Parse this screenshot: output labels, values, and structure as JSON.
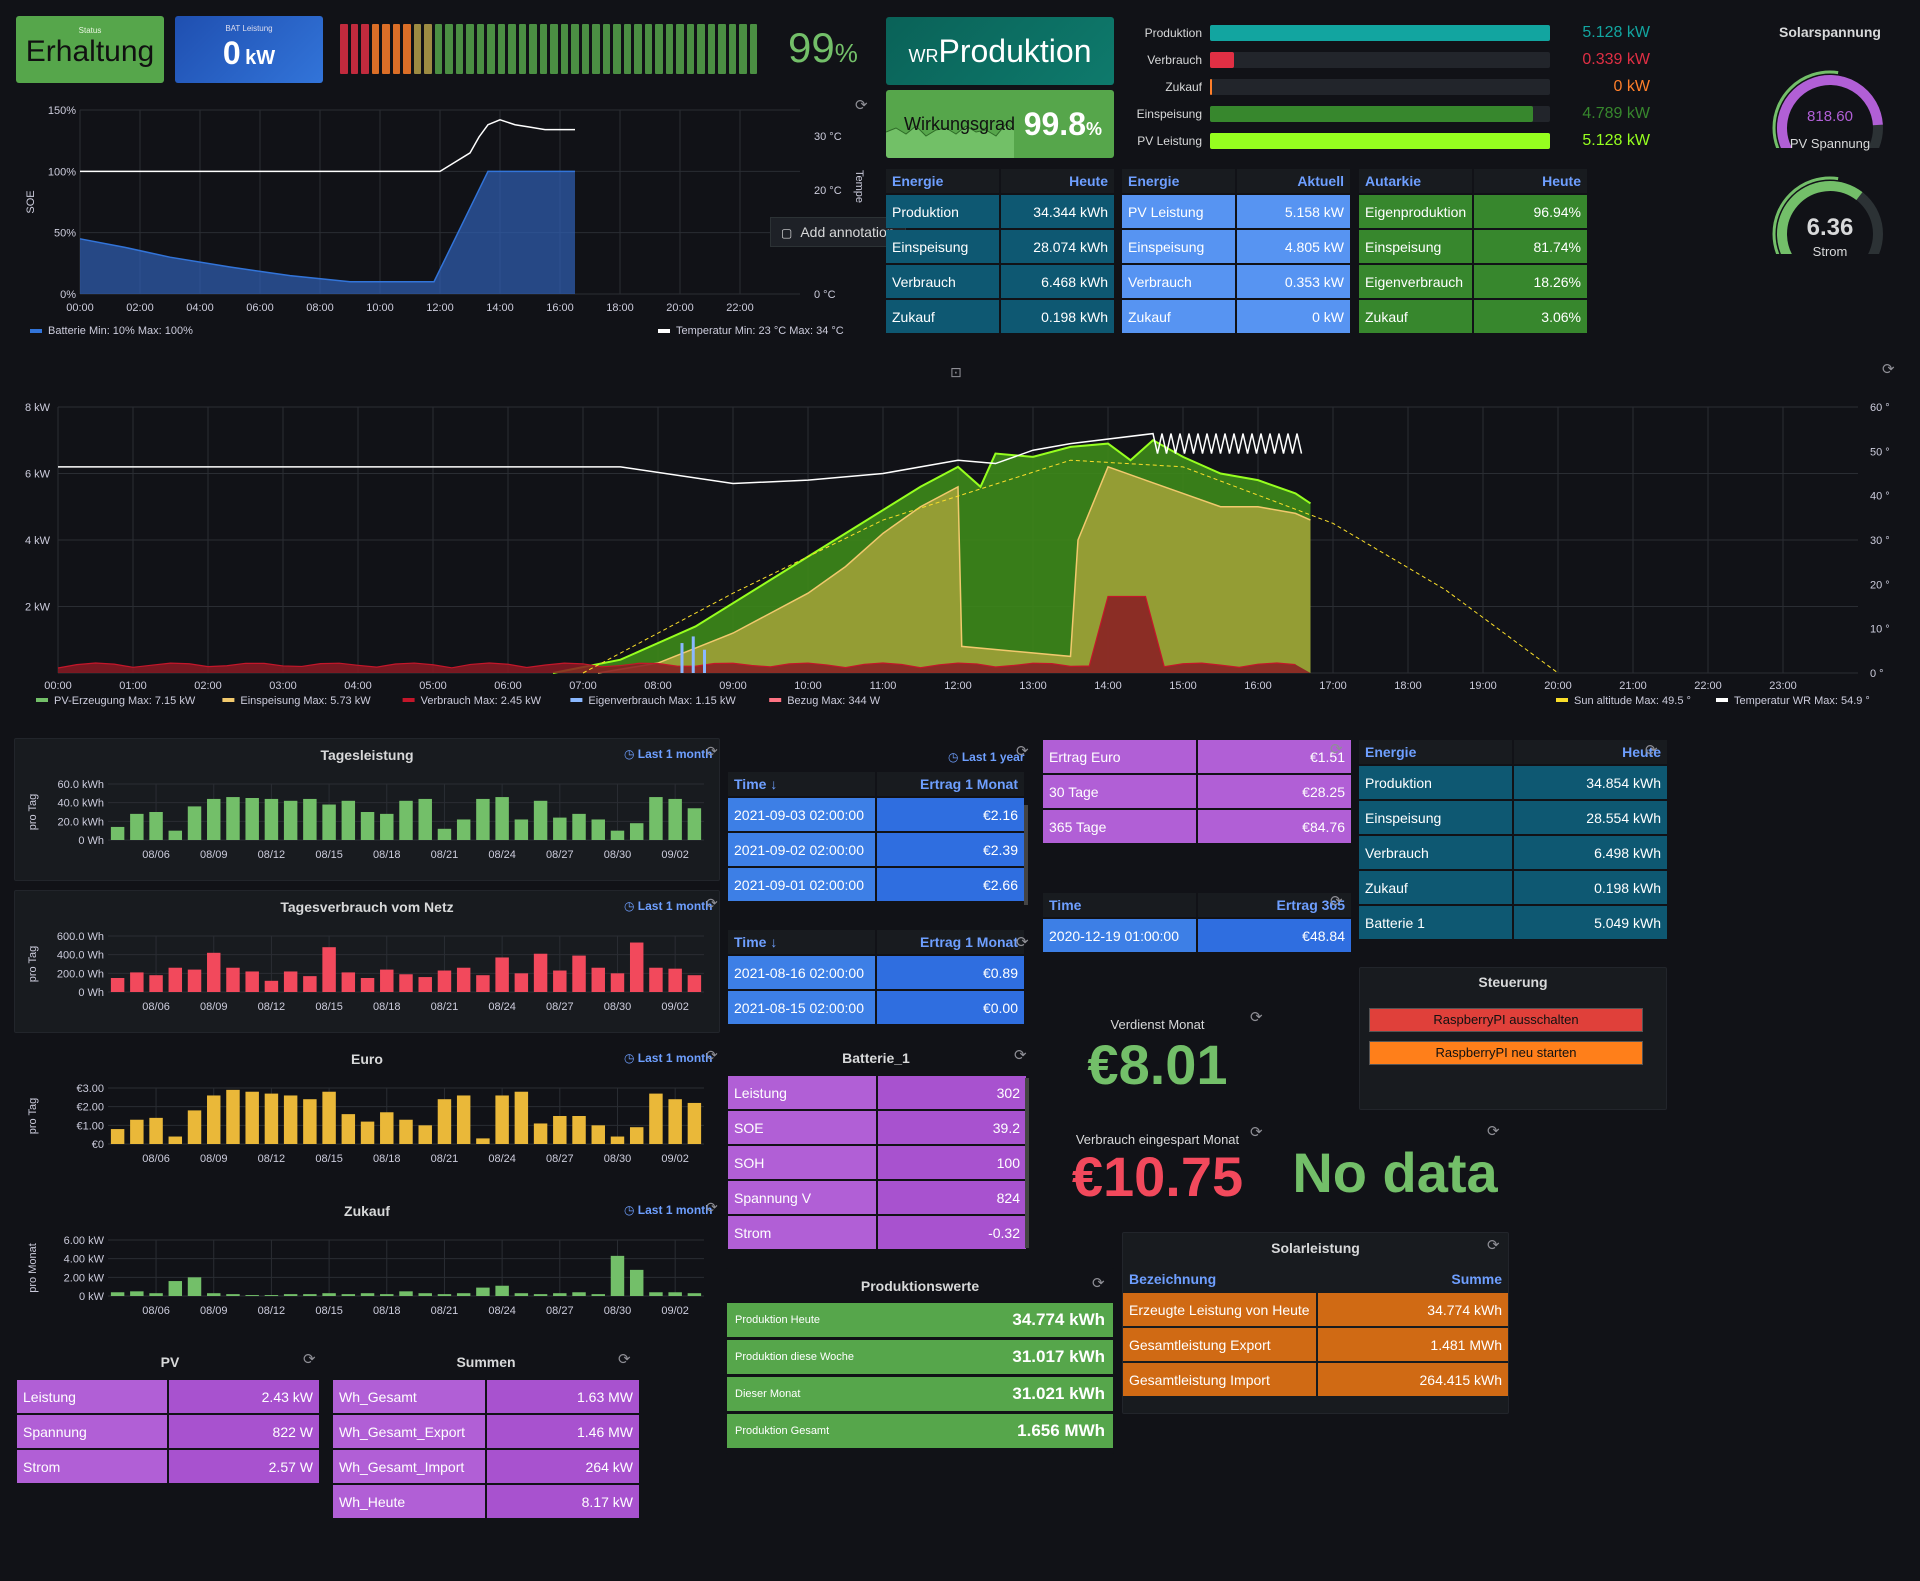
{
  "status": {
    "label": "Status",
    "value": "Erhaltung"
  },
  "bat_leistung": {
    "label": "BAT Leistung",
    "value": "0",
    "unit": "kW"
  },
  "soe_gauge": {
    "value": "99",
    "unit": "%",
    "fraction": 0.99
  },
  "wr": {
    "prefix": "WR",
    "label": "Produktion"
  },
  "wirkungsgrad": {
    "label": "Wirkungsgrad",
    "value": "99.8",
    "unit": "%"
  },
  "flows": [
    {
      "label": "Produktion",
      "value": "5.128 kW",
      "fraction": 1.0,
      "color": "#12a5a0"
    },
    {
      "label": "Verbrauch",
      "value": "0.339 kW",
      "fraction": 0.07,
      "color": "#e02f44"
    },
    {
      "label": "Zukauf",
      "value": "0 kW",
      "fraction": 0.005,
      "color": "#ff7f2a"
    },
    {
      "label": "Einspeisung",
      "value": "4.789 kW",
      "fraction": 0.95,
      "color": "#37872d"
    },
    {
      "label": "PV Leistung",
      "value": "5.128 kW",
      "fraction": 1.0,
      "color": "#96ff1f"
    }
  ],
  "solarspannung": {
    "title": "Solarspannung",
    "value": "818.60",
    "label": "PV Spannung",
    "fraction": 0.82
  },
  "strom_gauge": {
    "value": "6.36",
    "label": "Strom",
    "fraction": 0.64
  },
  "soe_chart": {
    "ylabel": "SOE",
    "yticks": [
      "150%",
      "100%",
      "50%",
      "0%"
    ],
    "y2ticks": [
      "30 °C",
      "20 °C",
      "0 °C"
    ],
    "y2label": "Tempe",
    "xticks": [
      "00:00",
      "02:00",
      "04:00",
      "06:00",
      "08:00",
      "10:00",
      "12:00",
      "14:00",
      "16:00",
      "18:00",
      "20:00",
      "22:00"
    ],
    "legend": [
      {
        "name": "Batterie",
        "stats": "Min: 10%  Max: 100%",
        "color": "#3274d9"
      },
      {
        "name": "Temperatur",
        "stats": "Min: 23 °C  Max: 34 °C",
        "color": "#ffffff"
      }
    ],
    "annotation": "Add annotation"
  },
  "energie_heute": {
    "h1": "Energie",
    "h2": "Heute",
    "rows": [
      [
        "Produktion",
        "34.344 kWh"
      ],
      [
        "Einspeisung",
        "28.074 kWh"
      ],
      [
        "Verbrauch",
        "6.468 kWh"
      ],
      [
        "Zukauf",
        "0.198 kWh"
      ]
    ]
  },
  "energie_aktuell": {
    "h1": "Energie",
    "h2": "Aktuell",
    "rows": [
      [
        "PV Leistung",
        "5.158 kW"
      ],
      [
        "Einspeisung",
        "4.805 kW"
      ],
      [
        "Verbrauch",
        "0.353 kW"
      ],
      [
        "Zukauf",
        "0 kW"
      ]
    ]
  },
  "autarkie": {
    "h1": "Autarkie",
    "h2": "Heute",
    "rows": [
      [
        "Eigenproduktion",
        "96.94%"
      ],
      [
        "Einspeisung",
        "81.74%"
      ],
      [
        "Eigenverbrauch",
        "18.26%"
      ],
      [
        "Zukauf",
        "3.06%"
      ]
    ]
  },
  "main_chart": {
    "yticks": [
      "8 kW",
      "6 kW",
      "4 kW",
      "2 kW"
    ],
    "y2ticks": [
      "60 °",
      "50 °",
      "40 °",
      "30 °",
      "20 °",
      "10 °",
      "0 °"
    ],
    "xticks": [
      "00:00",
      "01:00",
      "02:00",
      "03:00",
      "04:00",
      "05:00",
      "06:00",
      "07:00",
      "08:00",
      "09:00",
      "10:00",
      "11:00",
      "12:00",
      "13:00",
      "14:00",
      "15:00",
      "16:00",
      "17:00",
      "18:00",
      "19:00",
      "20:00",
      "21:00",
      "22:00",
      "23:00"
    ],
    "legend_left": [
      {
        "name": "PV-Erzeugung",
        "stats": "Max: 7.15 kW",
        "color": "#73bf69"
      },
      {
        "name": "Einspeisung",
        "stats": "Max: 5.73 kW",
        "color": "#f2c96d"
      },
      {
        "name": "Verbrauch",
        "stats": "Max: 2.45 kW",
        "color": "#c4162a"
      },
      {
        "name": "Eigenverbrauch",
        "stats": "Max: 1.15 kW",
        "color": "#8ab8ff"
      },
      {
        "name": "Bezug",
        "stats": "Max: 344 W",
        "color": "#ff7383"
      }
    ],
    "legend_right": [
      {
        "name": "Sun altitude",
        "stats": "Max: 49.5 °",
        "color": "#fade2a"
      },
      {
        "name": "Temperatur WR",
        "stats": "Max: 54.9 °",
        "color": "#ffffff"
      }
    ]
  },
  "bar_xticks": [
    "08/06",
    "08/09",
    "08/12",
    "08/15",
    "08/18",
    "08/21",
    "08/24",
    "08/27",
    "08/30",
    "09/02"
  ],
  "tagesleistung": {
    "title": "Tagesleistung",
    "link": "Last 1 month",
    "ylabel": "pro Tag",
    "yticks": [
      "60.0 kWh",
      "40.0 kWh",
      "20.0 kWh",
      "0 Wh"
    ],
    "ymax": 60,
    "color": "#73bf69",
    "values": [
      14,
      28,
      30,
      10,
      36,
      44,
      46,
      45,
      44,
      42,
      44,
      38,
      42,
      30,
      28,
      42,
      44,
      12,
      22,
      44,
      46,
      22,
      42,
      24,
      28,
      22,
      10,
      18,
      46,
      44,
      34
    ]
  },
  "tagesverbrauch": {
    "title": "Tagesverbrauch vom Netz",
    "link": "Last 1 month",
    "ylabel": "pro Tag",
    "yticks": [
      "600.0 Wh",
      "400.0 Wh",
      "200.0 Wh",
      "0 Wh"
    ],
    "ymax": 600,
    "color": "#f2495c",
    "values": [
      150,
      210,
      180,
      260,
      240,
      420,
      260,
      220,
      120,
      220,
      170,
      480,
      210,
      150,
      240,
      190,
      160,
      230,
      260,
      180,
      370,
      200,
      410,
      230,
      390,
      260,
      200,
      530,
      260,
      250,
      180
    ]
  },
  "euro": {
    "title": "Euro",
    "link": "Last 1 month",
    "ylabel": "pro Tag",
    "yticks": [
      "€3.00",
      "€2.00",
      "€1.00",
      "€0"
    ],
    "ymax": 3.2,
    "color": "#eab839",
    "values": [
      0.8,
      1.3,
      1.4,
      0.4,
      1.8,
      2.6,
      2.9,
      2.8,
      2.7,
      2.6,
      2.4,
      2.8,
      1.6,
      1.2,
      1.7,
      1.3,
      1.0,
      2.4,
      2.6,
      0.3,
      2.6,
      2.8,
      1.1,
      1.5,
      1.5,
      1.0,
      0.4,
      0.9,
      2.7,
      2.4,
      2.2
    ]
  },
  "zukauf_chart": {
    "title": "Zukauf",
    "link": "Last 1 month",
    "ylabel": "pro Monat",
    "yticks": [
      "6.00 kW",
      "4.00 kW",
      "2.00 kW",
      "0 kW"
    ],
    "ymax": 6.4,
    "color": "#73bf69",
    "values": [
      0.4,
      0.5,
      0.3,
      1.6,
      2.0,
      0.3,
      0.2,
      0.1,
      0.1,
      0.2,
      0.2,
      0.3,
      0.2,
      0.3,
      0.2,
      0.5,
      0.3,
      0.2,
      0.3,
      0.9,
      1.1,
      0.3,
      0.2,
      0.3,
      0.4,
      0.2,
      4.3,
      2.8,
      0.4,
      0.4,
      0.3
    ]
  },
  "ertrag_monat": {
    "link": "Last 1 year",
    "h1": "Time ↓",
    "h2": "Ertrag 1 Monat",
    "rows": [
      [
        "2021-09-03 02:00:00",
        "€2.16"
      ],
      [
        "2021-09-02 02:00:00",
        "€2.39"
      ],
      [
        "2021-09-01 02:00:00",
        "€2.66"
      ]
    ]
  },
  "ertrag_monat2": {
    "h1": "Time ↓",
    "h2": "Ertrag 1 Monat",
    "rows": [
      [
        "2021-08-16 02:00:00",
        "€0.89"
      ],
      [
        "2021-08-15 02:00:00",
        "€0.00"
      ]
    ]
  },
  "ertrag_euro": {
    "rows": [
      [
        "Ertrag Euro",
        "€1.51"
      ],
      [
        "30 Tage",
        "€28.25"
      ],
      [
        "365 Tage",
        "€84.76"
      ]
    ]
  },
  "ertrag_365": {
    "h1": "Time",
    "h2": "Ertrag 365",
    "rows": [
      [
        "2020-12-19 01:00:00",
        "€48.84"
      ]
    ]
  },
  "energie_heute2": {
    "h1": "Energie",
    "h2": "Heute",
    "rows": [
      [
        "Produktion",
        "34.854 kWh"
      ],
      [
        "Einspeisung",
        "28.554 kWh"
      ],
      [
        "Verbrauch",
        "6.498 kWh"
      ],
      [
        "Zukauf",
        "0.198 kWh"
      ],
      [
        "Batterie 1",
        "5.049 kWh"
      ]
    ]
  },
  "steuerung": {
    "title": "Steuerung",
    "btn1": "RaspberryPI ausschalten",
    "btn2": "RaspberryPI neu starten"
  },
  "verdienst": {
    "label": "Verdienst Monat",
    "value": "€8.01"
  },
  "eingespart": {
    "label": "Verbrauch eingespart Monat",
    "value": "€10.75"
  },
  "nodata": "No data",
  "batterie": {
    "title": "Batterie_1",
    "rows": [
      [
        "Leistung",
        "302"
      ],
      [
        "SOE",
        "39.2"
      ],
      [
        "SOH",
        "100"
      ],
      [
        "Spannung V",
        "824"
      ],
      [
        "Strom",
        "-0.32"
      ]
    ]
  },
  "produktionswerte": {
    "title": "Produktionswerte",
    "rows": [
      [
        "Produktion Heute",
        "34.774 kWh"
      ],
      [
        "Produktion diese Woche",
        "31.017 kWh"
      ],
      [
        "Dieser Monat",
        "31.021 kWh"
      ],
      [
        "Produktion Gesamt",
        "1.656 MWh"
      ]
    ]
  },
  "solarleistung": {
    "title": "Solarleistung",
    "h1": "Bezeichnung",
    "h2": "Summe",
    "rows": [
      [
        "Erzeugte Leistung von Heute",
        "34.774 kWh"
      ],
      [
        "Gesamtleistung Export",
        "1.481 MWh"
      ],
      [
        "Gesamtleistung Import",
        "264.415 kWh"
      ]
    ]
  },
  "pv": {
    "title": "PV",
    "rows": [
      [
        "Leistung",
        "2.43 kW"
      ],
      [
        "Spannung",
        "822 W"
      ],
      [
        "Strom",
        "2.57 W"
      ]
    ]
  },
  "summen": {
    "title": "Summen",
    "rows": [
      [
        "Wh_Gesamt",
        "1.63 MW"
      ],
      [
        "Wh_Gesamt_Export",
        "1.46 MW"
      ],
      [
        "Wh_Gesamt_Import",
        "264 kW"
      ],
      [
        "Wh_Heute",
        "8.17 kW"
      ]
    ]
  },
  "colors": {
    "bg": "#111217",
    "green": "#73bf69",
    "red": "#f2495c",
    "purple": "#b15fd6",
    "blue": "#3d7fe6",
    "teal": "#0e5872",
    "orange": "#d06a14",
    "dgreen": "#37872d"
  }
}
